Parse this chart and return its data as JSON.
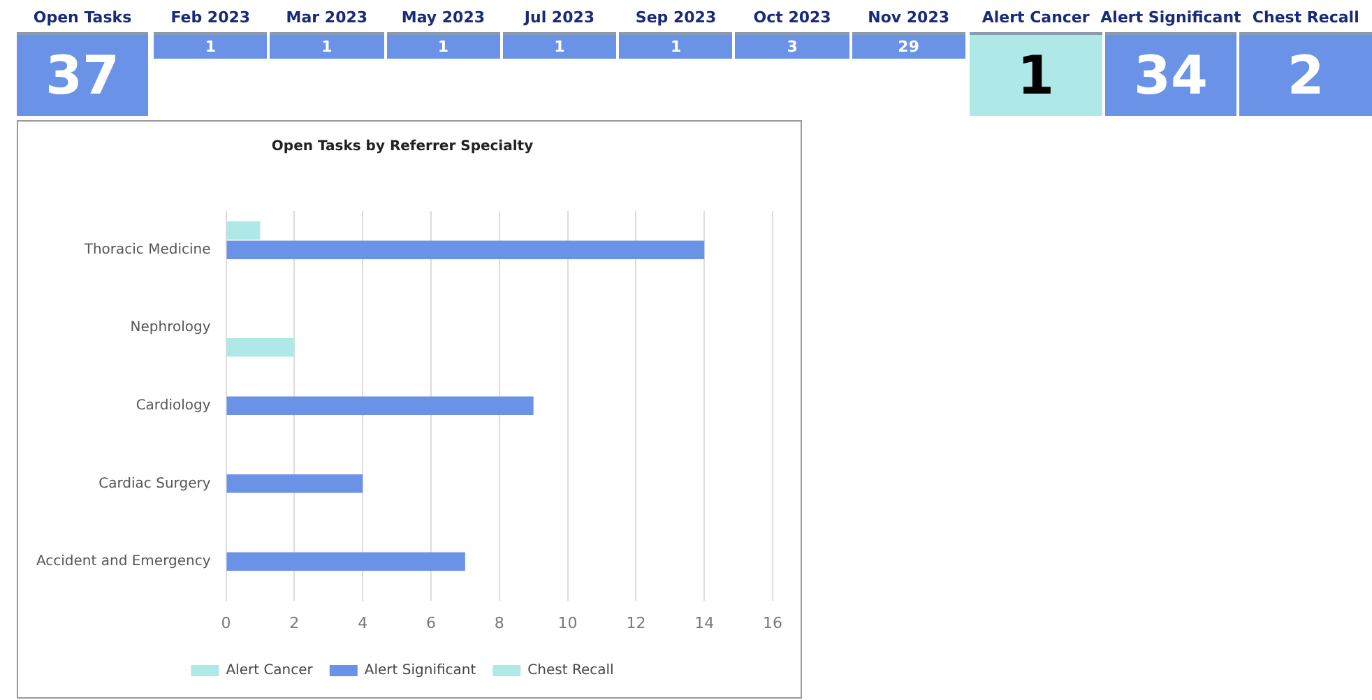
{
  "chart_data": [
    {
      "type": "other",
      "categories": [
        "Open Tasks"
      ],
      "values": [
        37
      ],
      "colors": [
        "#6a93e8"
      ],
      "data_labels": true
    },
    {
      "type": "other",
      "categories": [
        "Feb 2023",
        "Mar 2023",
        "May 2023",
        "Jul 2023",
        "Sep 2023",
        "Oct 2023",
        "Nov 2023"
      ],
      "values": [
        1,
        1,
        1,
        1,
        1,
        3,
        29
      ],
      "colors": [
        "#6a93e8",
        "#6a93e8",
        "#6a93e8",
        "#6a93e8",
        "#6a93e8",
        "#6a93e8",
        "#6a93e8"
      ],
      "data_labels": true
    },
    {
      "type": "other",
      "categories": [
        "Alert Cancer",
        "Alert Significant",
        "Chest Recall"
      ],
      "values": [
        1,
        34,
        2
      ],
      "colors": [
        "#aee9e8",
        "#6a93e8",
        "#6a93e8"
      ],
      "data_labels": true
    },
    {
      "type": "bar",
      "orientation": "horizontal",
      "title": "Open Tasks by Referrer Specialty",
      "categories": [
        "Thoracic Medicine",
        "Nephrology",
        "Cardiology",
        "Cardiac Surgery",
        "Accident and Emergency"
      ],
      "series": [
        {
          "name": "Alert Cancer",
          "color": "#aee9e8",
          "values": [
            1,
            null,
            null,
            null,
            null
          ]
        },
        {
          "name": "Alert Significant",
          "color": "#6a93e8",
          "values": [
            14,
            null,
            9,
            4,
            7
          ]
        },
        {
          "name": "Chest Recall",
          "color": "#aee9e8",
          "values": [
            null,
            2,
            null,
            null,
            null
          ]
        }
      ],
      "xlim": [
        0,
        16
      ],
      "xticks": [
        0,
        2,
        4,
        6,
        8,
        10,
        12,
        14,
        16
      ],
      "grid": "x",
      "legend": "bottom"
    }
  ]
}
